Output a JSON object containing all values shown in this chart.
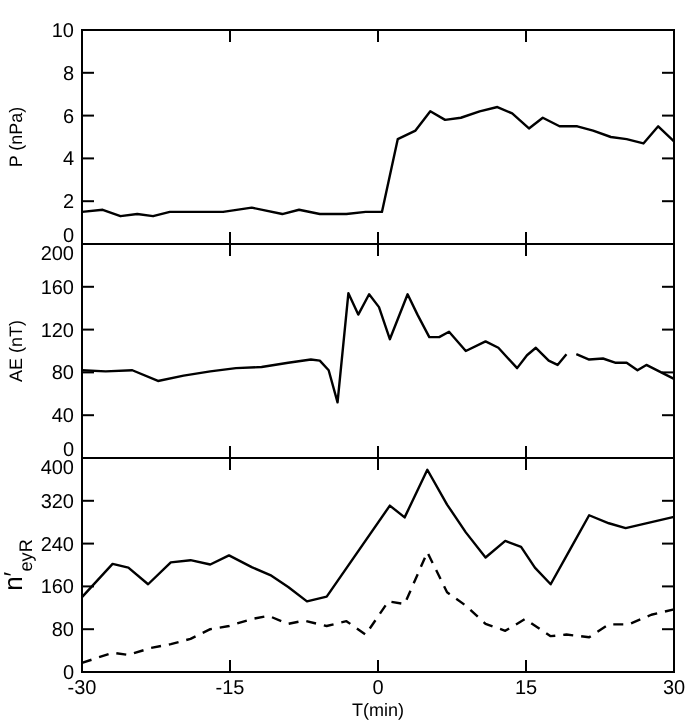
{
  "chart_data": [
    {
      "type": "line",
      "ylabel": "P (nPa)",
      "xlim": [
        -30,
        30
      ],
      "xticks": [
        -30,
        -15,
        0,
        15,
        30
      ],
      "ylim": [
        0,
        10
      ],
      "yticks": [
        0,
        2,
        4,
        6,
        8,
        10
      ],
      "tick_labels": "y",
      "grid": false,
      "marker": "none",
      "series": [
        {
          "color": "#000000",
          "line_style": "solid",
          "x": [
            -30,
            -27.9,
            -26.1,
            -24.4,
            -22.8,
            -21.1,
            -18.4,
            -15.7,
            -12.8,
            -9.7,
            -8,
            -5.9,
            -3.2,
            -1.25,
            0.4,
            2,
            3.8,
            5.3,
            6.8,
            8.4,
            10.3,
            12.1,
            13.6,
            15.3,
            16.7,
            18.4,
            20.2,
            21.8,
            23.6,
            25.2,
            26.9,
            28.4,
            30
          ],
          "values": [
            1.5,
            1.6,
            1.3,
            1.4,
            1.3,
            1.5,
            1.5,
            1.5,
            1.7,
            1.4,
            1.6,
            1.4,
            1.4,
            1.5,
            1.5,
            4.9,
            5.3,
            6.2,
            5.8,
            5.9,
            6.2,
            6.4,
            6.1,
            5.4,
            5.9,
            5.5,
            5.5,
            5.3,
            5,
            4.9,
            4.7,
            5.5,
            4.8
          ]
        }
      ]
    },
    {
      "type": "line",
      "ylabel": "AE (nT)",
      "xlim": [
        -30,
        30
      ],
      "xticks": [
        -30,
        -15,
        0,
        15,
        30
      ],
      "ylim": [
        0,
        200
      ],
      "yticks": [
        0,
        40,
        80,
        120,
        160,
        200
      ],
      "tick_labels": "y",
      "grid": false,
      "marker": "none",
      "series": [
        {
          "color": "#000000",
          "line_style": "solid",
          "x": [
            -30,
            -27.6,
            -24.9,
            -22.3,
            -19.7,
            -17,
            -14.4,
            -11.8,
            -9.1,
            -6.8,
            -5.9,
            -5,
            -4.1,
            -3,
            -2,
            -0.9,
            0.1,
            1.2,
            3,
            4,
            5.2,
            6.2,
            7.2,
            8.9,
            10.9,
            12.2,
            14.1,
            15.1,
            16,
            17.3,
            18.2,
            19.1,
            19.6,
            20.1,
            21.4,
            22.8,
            24.1,
            25.2,
            26.3,
            27.2,
            28.7,
            30
          ],
          "values": [
            82,
            81,
            82,
            72,
            77,
            81,
            84,
            85,
            89,
            92,
            91,
            82,
            52,
            154,
            134,
            153,
            141,
            111,
            153,
            134,
            113,
            113,
            118,
            100,
            109,
            103,
            84,
            96,
            103,
            91,
            87,
            97,
            null,
            97,
            92,
            93,
            89,
            89,
            82,
            87,
            80,
            74
          ]
        }
      ]
    },
    {
      "type": "line",
      "xlabel": "T(min)",
      "ylabel": "n′$_{eyR}$",
      "xlim": [
        -30,
        30
      ],
      "xticks": [
        -30,
        -15,
        0,
        15,
        30
      ],
      "ylim": [
        0,
        400
      ],
      "yticks": [
        0,
        80,
        160,
        240,
        320,
        400
      ],
      "grid": false,
      "marker": "none",
      "series": [
        {
          "color": "#000000",
          "line_style": "solid",
          "x": [
            -30,
            -26.9,
            -25.3,
            -23.3,
            -21,
            -19,
            -17,
            -15.1,
            -12.8,
            -10.8,
            -9.1,
            -7.2,
            -5.2,
            1.2,
            2.7,
            5,
            7,
            8.9,
            10.9,
            12.9,
            14.5,
            15.9,
            17.5,
            19.5,
            21.4,
            23.4,
            25.1,
            30
          ],
          "values": [
            140,
            202,
            195,
            164,
            205,
            209,
            201,
            218,
            196,
            180,
            159,
            132,
            141,
            311,
            289,
            378,
            313,
            261,
            214,
            245,
            234,
            195,
            164,
            230,
            293,
            278,
            269,
            290
          ]
        },
        {
          "color": "#000000",
          "line_style": "dashed",
          "x": [
            -30,
            -26.9,
            -25.3,
            -23,
            -21,
            -19,
            -17,
            -15.1,
            -12.8,
            -11.1,
            -9.1,
            -7.5,
            -5.2,
            -3.2,
            -1.25,
            1.05,
            2.7,
            5,
            7,
            8.9,
            10.9,
            12.9,
            14.9,
            17.5,
            19.1,
            21.4,
            23.4,
            25.4,
            27.7,
            30
          ],
          "values": [
            17,
            36,
            32,
            45,
            52,
            62,
            80,
            86,
            99,
            105,
            90,
            96,
            86,
            95,
            70,
            132,
            127,
            224,
            149,
            124,
            90,
            77,
            99,
            67,
            70,
            65,
            89,
            89,
            107,
            117
          ]
        }
      ]
    }
  ]
}
